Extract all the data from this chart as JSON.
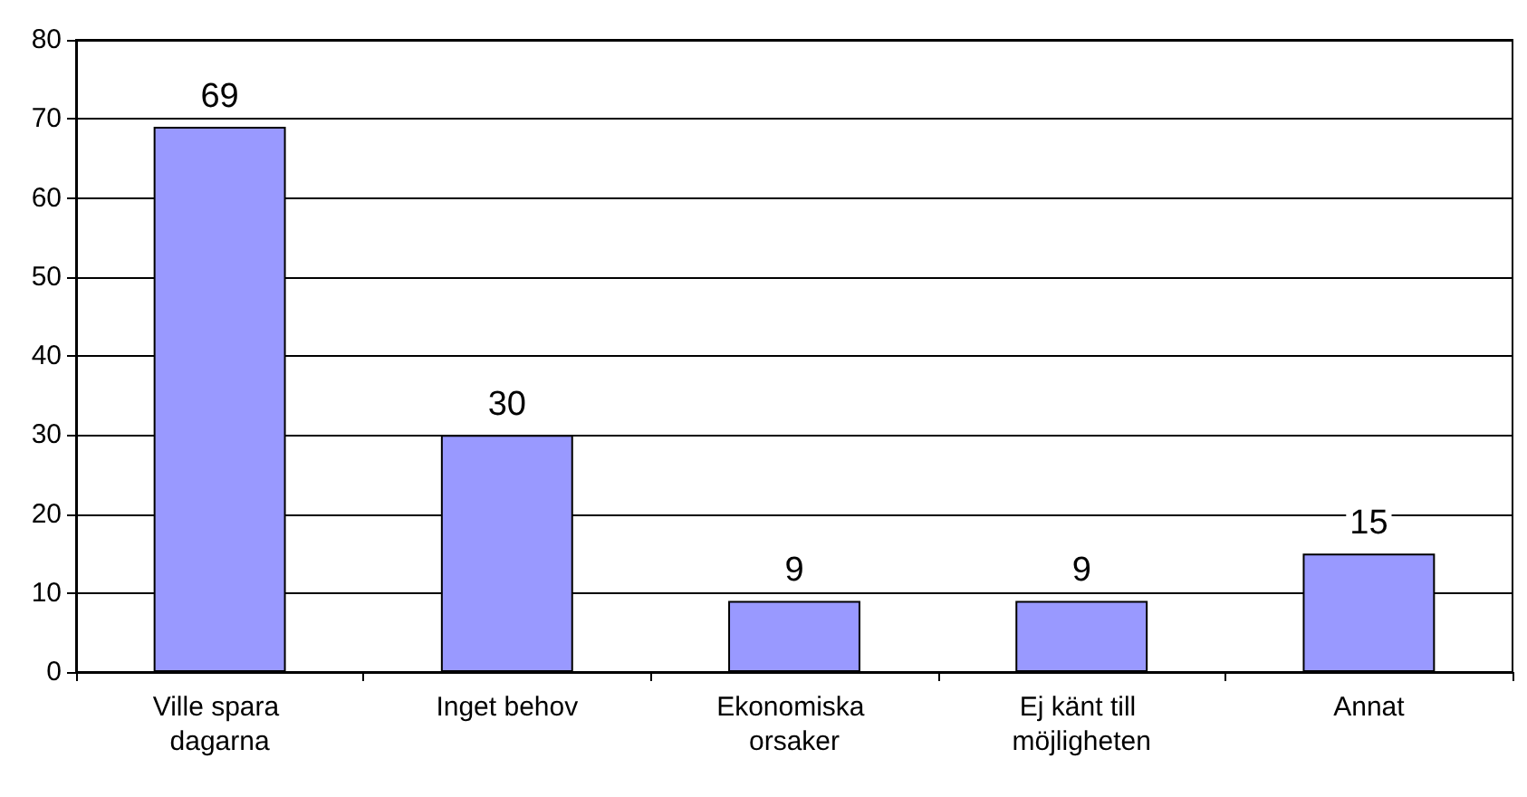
{
  "chart_data": {
    "type": "bar",
    "categories": [
      "Ville spara dagarna",
      "Inget behov",
      "Ekonomiska orsaker",
      "Ej känt till möjligheten",
      "Annat"
    ],
    "values": [
      69,
      30,
      9,
      9,
      15
    ],
    "color": "#9999ff",
    "data_labels": true,
    "ylim": [
      0,
      80
    ],
    "yticks": [
      0,
      10,
      20,
      30,
      40,
      50,
      60,
      70,
      80
    ],
    "grid": "y"
  }
}
